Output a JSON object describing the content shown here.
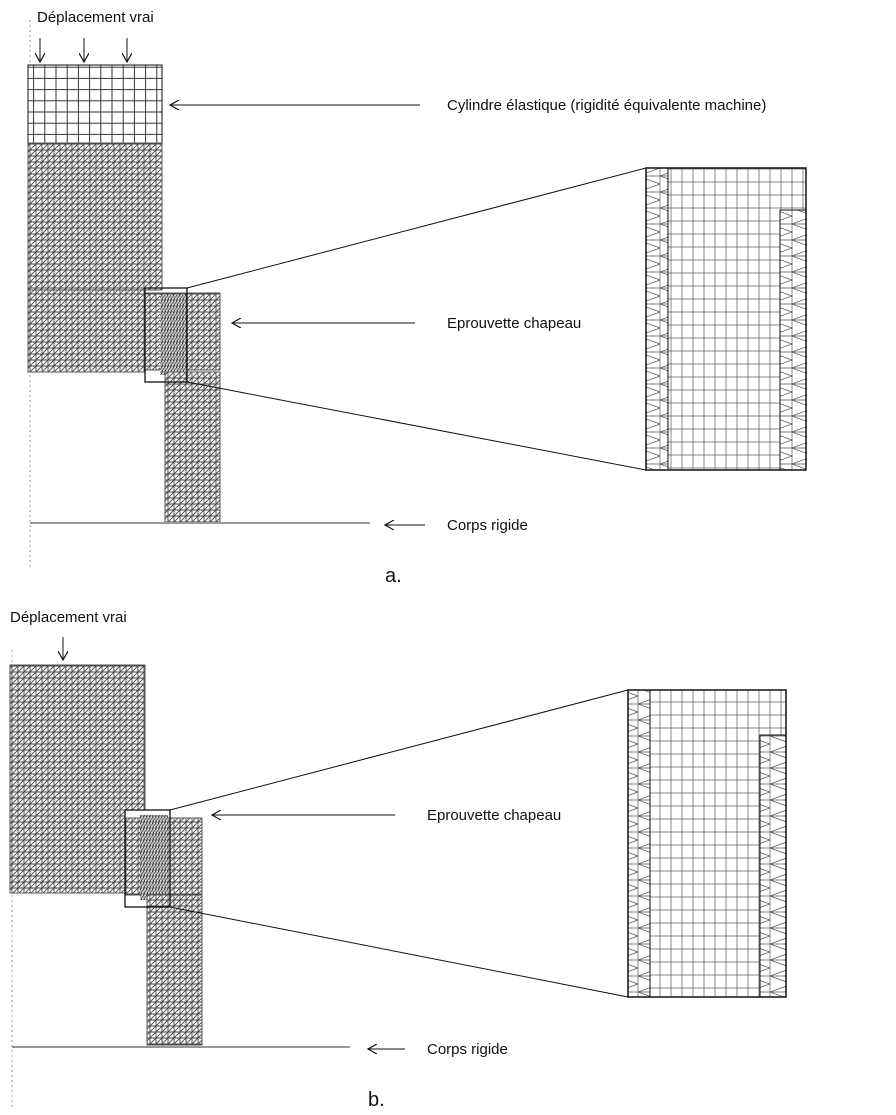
{
  "panels": [
    {
      "label": "a.",
      "displacement": "Déplacement vrai",
      "cylinder": "Cylindre élastique (rigidité équivalente machine)",
      "specimen": "Eprouvette chapeau",
      "rigid": "Corps rigide"
    },
    {
      "label": "b.",
      "displacement": "Déplacement vrai",
      "specimen": "Eprouvette chapeau",
      "rigid": "Corps rigide"
    }
  ]
}
